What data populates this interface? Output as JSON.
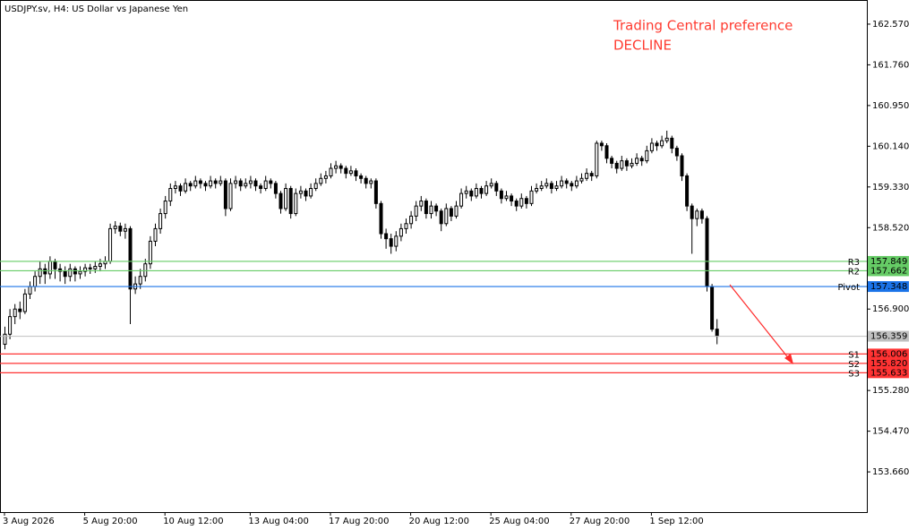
{
  "chart_data": {
    "type": "candlestick",
    "title": "USDJPY.sv, H4:  US Dollar vs Japanese Yen",
    "annotation": [
      "Trading Central preference",
      "DECLINE"
    ],
    "ylim": [
      152.86,
      163.05
    ],
    "yticks": [
      {
        "value": 162.57,
        "label": "162.570"
      },
      {
        "value": 161.76,
        "label": "161.760"
      },
      {
        "value": 160.95,
        "label": "160.950"
      },
      {
        "value": 160.14,
        "label": "160.140"
      },
      {
        "value": 159.33,
        "label": "159.330"
      },
      {
        "value": 158.52,
        "label": "158.520"
      },
      {
        "value": 156.9,
        "label": "156.900"
      },
      {
        "value": 155.28,
        "label": "155.280"
      },
      {
        "value": 154.47,
        "label": "154.470"
      },
      {
        "value": 153.66,
        "label": "153.660"
      }
    ],
    "xticks": [
      {
        "value": 0,
        "label": "3 Aug 2026"
      },
      {
        "value": 16,
        "label": "5 Aug 20:00"
      },
      {
        "value": 32,
        "label": "10 Aug 12:00"
      },
      {
        "value": 49,
        "label": "13 Aug 04:00"
      },
      {
        "value": 65,
        "label": "17 Aug 20:00"
      },
      {
        "value": 81,
        "label": "20 Aug 12:00"
      },
      {
        "value": 97,
        "label": "25 Aug 04:00"
      },
      {
        "value": 113,
        "label": "27 Aug 20:00"
      },
      {
        "value": 129,
        "label": "1 Sep 12:00"
      }
    ],
    "candles": [
      [
        156.2,
        156.55,
        156.1,
        156.4
      ],
      [
        156.4,
        156.9,
        156.3,
        156.75
      ],
      [
        156.75,
        157.0,
        156.6,
        156.9
      ],
      [
        156.9,
        157.05,
        156.7,
        156.85
      ],
      [
        156.85,
        157.3,
        156.8,
        157.2
      ],
      [
        157.2,
        157.45,
        157.1,
        157.35
      ],
      [
        157.35,
        157.65,
        157.25,
        157.55
      ],
      [
        157.55,
        157.85,
        157.4,
        157.7
      ],
      [
        157.7,
        157.8,
        157.4,
        157.6
      ],
      [
        157.6,
        157.95,
        157.5,
        157.85
      ],
      [
        157.85,
        157.9,
        157.5,
        157.7
      ],
      [
        157.7,
        157.8,
        157.45,
        157.65
      ],
      [
        157.65,
        157.75,
        157.4,
        157.55
      ],
      [
        157.55,
        157.8,
        157.45,
        157.7
      ],
      [
        157.7,
        157.75,
        157.45,
        157.6
      ],
      [
        157.6,
        157.75,
        157.5,
        157.65
      ],
      [
        157.65,
        157.8,
        157.55,
        157.72
      ],
      [
        157.72,
        157.8,
        157.6,
        157.7
      ],
      [
        157.7,
        157.85,
        157.62,
        157.75
      ],
      [
        157.75,
        157.9,
        157.65,
        157.8
      ],
      [
        157.8,
        157.95,
        157.7,
        157.85
      ],
      [
        157.85,
        158.6,
        157.8,
        158.5
      ],
      [
        158.5,
        158.65,
        158.4,
        158.55
      ],
      [
        158.55,
        158.62,
        158.35,
        158.45
      ],
      [
        158.45,
        158.6,
        158.3,
        158.5
      ],
      [
        158.5,
        158.55,
        156.6,
        157.3
      ],
      [
        157.3,
        157.55,
        157.2,
        157.4
      ],
      [
        157.4,
        157.7,
        157.3,
        157.55
      ],
      [
        157.55,
        157.9,
        157.45,
        157.8
      ],
      [
        157.8,
        158.35,
        157.7,
        158.25
      ],
      [
        158.25,
        158.6,
        158.15,
        158.5
      ],
      [
        158.5,
        158.9,
        158.4,
        158.8
      ],
      [
        158.8,
        159.15,
        158.7,
        159.05
      ],
      [
        159.05,
        159.4,
        158.95,
        159.3
      ],
      [
        159.3,
        159.45,
        159.2,
        159.35
      ],
      [
        159.35,
        159.4,
        159.15,
        159.25
      ],
      [
        159.25,
        159.5,
        159.2,
        159.4
      ],
      [
        159.4,
        159.45,
        159.25,
        159.35
      ],
      [
        159.35,
        159.55,
        159.3,
        159.45
      ],
      [
        159.45,
        159.5,
        159.3,
        159.4
      ],
      [
        159.4,
        159.45,
        159.25,
        159.35
      ],
      [
        159.35,
        159.55,
        159.3,
        159.45
      ],
      [
        159.45,
        159.5,
        159.3,
        159.4
      ],
      [
        159.4,
        159.55,
        159.35,
        159.45
      ],
      [
        159.45,
        159.5,
        158.75,
        158.9
      ],
      [
        158.9,
        159.5,
        158.85,
        159.4
      ],
      [
        159.4,
        159.55,
        159.3,
        159.45
      ],
      [
        159.45,
        159.5,
        159.25,
        159.35
      ],
      [
        159.35,
        159.5,
        159.3,
        159.4
      ],
      [
        159.4,
        159.55,
        159.3,
        159.45
      ],
      [
        159.45,
        159.5,
        159.25,
        159.35
      ],
      [
        159.35,
        159.4,
        159.2,
        159.3
      ],
      [
        159.3,
        159.55,
        159.25,
        159.45
      ],
      [
        159.45,
        159.5,
        159.3,
        159.4
      ],
      [
        159.4,
        159.45,
        159.1,
        159.2
      ],
      [
        159.2,
        159.25,
        158.8,
        158.9
      ],
      [
        158.9,
        159.4,
        158.85,
        159.3
      ],
      [
        159.3,
        159.35,
        158.7,
        158.8
      ],
      [
        158.8,
        159.3,
        158.75,
        159.2
      ],
      [
        159.2,
        159.35,
        159.1,
        159.25
      ],
      [
        159.25,
        159.3,
        159.05,
        159.15
      ],
      [
        159.15,
        159.4,
        159.1,
        159.3
      ],
      [
        159.3,
        159.5,
        159.25,
        159.4
      ],
      [
        159.4,
        159.6,
        159.35,
        159.5
      ],
      [
        159.5,
        159.65,
        159.4,
        159.55
      ],
      [
        159.55,
        159.8,
        159.5,
        159.7
      ],
      [
        159.7,
        159.85,
        159.6,
        159.75
      ],
      [
        159.75,
        159.8,
        159.6,
        159.7
      ],
      [
        159.7,
        159.75,
        159.5,
        159.6
      ],
      [
        159.6,
        159.75,
        159.55,
        159.65
      ],
      [
        159.65,
        159.7,
        159.45,
        159.55
      ],
      [
        159.55,
        159.6,
        159.4,
        159.5
      ],
      [
        159.5,
        159.55,
        159.3,
        159.4
      ],
      [
        159.4,
        159.5,
        159.3,
        159.45
      ],
      [
        159.45,
        159.5,
        158.9,
        159.0
      ],
      [
        159.0,
        159.05,
        158.3,
        158.4
      ],
      [
        158.4,
        158.5,
        158.1,
        158.3
      ],
      [
        158.3,
        158.4,
        158.0,
        158.15
      ],
      [
        158.15,
        158.45,
        158.05,
        158.35
      ],
      [
        158.35,
        158.6,
        158.25,
        158.5
      ],
      [
        158.5,
        158.7,
        158.4,
        158.6
      ],
      [
        158.6,
        158.85,
        158.5,
        158.75
      ],
      [
        158.75,
        159.05,
        158.65,
        158.95
      ],
      [
        158.95,
        159.15,
        158.85,
        159.05
      ],
      [
        159.05,
        159.1,
        158.7,
        158.8
      ],
      [
        158.8,
        159.05,
        158.7,
        158.95
      ],
      [
        158.95,
        159.0,
        158.75,
        158.85
      ],
      [
        158.85,
        158.9,
        158.45,
        158.6
      ],
      [
        158.6,
        159.0,
        158.55,
        158.9
      ],
      [
        158.9,
        158.95,
        158.65,
        158.75
      ],
      [
        158.75,
        159.05,
        158.7,
        158.95
      ],
      [
        158.95,
        159.3,
        158.9,
        159.2
      ],
      [
        159.2,
        159.35,
        159.1,
        159.25
      ],
      [
        159.25,
        159.3,
        159.05,
        159.15
      ],
      [
        159.15,
        159.4,
        159.1,
        159.3
      ],
      [
        159.3,
        159.35,
        159.1,
        159.2
      ],
      [
        159.2,
        159.45,
        159.15,
        159.35
      ],
      [
        159.35,
        159.5,
        159.3,
        159.4
      ],
      [
        159.4,
        159.45,
        159.15,
        159.25
      ],
      [
        159.25,
        159.3,
        159.0,
        159.1
      ],
      [
        159.1,
        159.25,
        159.05,
        159.15
      ],
      [
        159.15,
        159.2,
        158.95,
        159.05
      ],
      [
        159.05,
        159.1,
        158.85,
        158.95
      ],
      [
        158.95,
        159.2,
        158.9,
        159.1
      ],
      [
        159.1,
        159.15,
        158.9,
        159.0
      ],
      [
        159.0,
        159.35,
        158.95,
        159.25
      ],
      [
        159.25,
        159.4,
        159.2,
        159.3
      ],
      [
        159.3,
        159.45,
        159.25,
        159.35
      ],
      [
        159.35,
        159.5,
        159.3,
        159.4
      ],
      [
        159.4,
        159.45,
        159.2,
        159.3
      ],
      [
        159.3,
        159.45,
        159.25,
        159.35
      ],
      [
        159.35,
        159.55,
        159.3,
        159.45
      ],
      [
        159.45,
        159.5,
        159.3,
        159.4
      ],
      [
        159.4,
        159.45,
        159.25,
        159.35
      ],
      [
        159.35,
        159.55,
        159.3,
        159.45
      ],
      [
        159.45,
        159.6,
        159.4,
        159.5
      ],
      [
        159.5,
        159.7,
        159.45,
        159.6
      ],
      [
        159.6,
        159.65,
        159.45,
        159.55
      ],
      [
        159.55,
        160.25,
        159.5,
        160.2
      ],
      [
        160.2,
        160.25,
        160.05,
        160.15
      ],
      [
        160.15,
        160.2,
        159.8,
        159.9
      ],
      [
        159.9,
        159.95,
        159.7,
        159.8
      ],
      [
        159.8,
        159.85,
        159.6,
        159.7
      ],
      [
        159.7,
        159.95,
        159.65,
        159.85
      ],
      [
        159.85,
        159.9,
        159.65,
        159.75
      ],
      [
        159.75,
        159.9,
        159.7,
        159.8
      ],
      [
        159.8,
        160.0,
        159.75,
        159.9
      ],
      [
        159.9,
        159.95,
        159.75,
        159.85
      ],
      [
        159.85,
        160.15,
        159.8,
        160.05
      ],
      [
        160.05,
        160.3,
        160.0,
        160.2
      ],
      [
        160.2,
        160.25,
        160.05,
        160.15
      ],
      [
        160.15,
        160.35,
        160.1,
        160.25
      ],
      [
        160.25,
        160.45,
        160.2,
        160.3
      ],
      [
        160.3,
        160.35,
        160.0,
        160.1
      ],
      [
        160.1,
        160.15,
        159.85,
        159.95
      ],
      [
        159.95,
        160.0,
        159.45,
        159.55
      ],
      [
        159.55,
        159.6,
        158.85,
        158.95
      ],
      [
        158.95,
        159.0,
        158.0,
        158.7
      ],
      [
        158.7,
        158.9,
        158.55,
        158.85
      ],
      [
        158.85,
        158.9,
        158.6,
        158.7
      ],
      [
        158.7,
        158.75,
        157.25,
        157.35
      ],
      [
        157.35,
        157.4,
        156.45,
        156.5
      ],
      [
        156.5,
        156.7,
        156.2,
        156.359
      ]
    ],
    "colors": {
      "up": "#ffffff",
      "down": "#000000",
      "outline": "#000000"
    },
    "levels": [
      {
        "name": "R3",
        "value": 157.849,
        "color": "#66cc66"
      },
      {
        "name": "R2",
        "value": 157.662,
        "color": "#66cc66"
      },
      {
        "name": "Pivot",
        "value": 157.348,
        "color": "#1a73e8"
      },
      {
        "name": "S1",
        "value": 156.006,
        "color": "#ff3333"
      },
      {
        "name": "S2",
        "value": {
          "value": 155.82,
          "label": "155.820"
        },
        "color": "#ff3333"
      },
      {
        "name": "S3",
        "value": 155.633,
        "color": "#ff3333"
      }
    ],
    "current_price": {
      "value": 156.359,
      "color": "#c0c0c0"
    }
  }
}
